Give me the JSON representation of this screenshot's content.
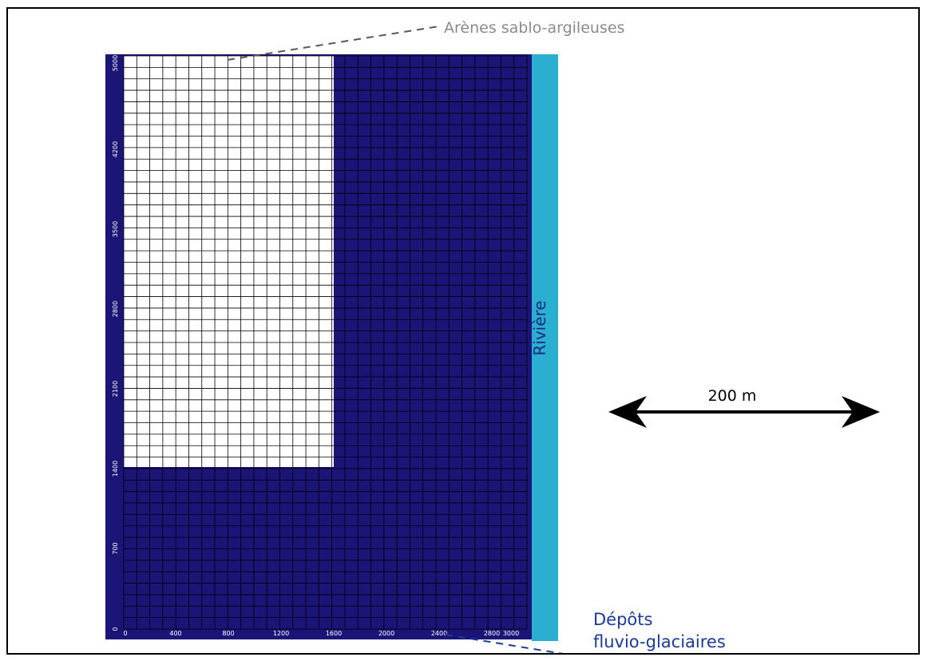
{
  "labels": {
    "arenes": "Arènes sablo-argileuses",
    "riviere": "Rivière",
    "scale": "200 m",
    "depots_line1": "Dépôts",
    "depots_line2": "fluvio-glaciaires"
  },
  "axes": {
    "x_ticks": [
      "0",
      "400",
      "800",
      "1200",
      "1600",
      "2000",
      "2400",
      "2800",
      "3000"
    ],
    "y_ticks": [
      "0",
      "700",
      "1400",
      "2100",
      "2800",
      "3500",
      "4200",
      "5000"
    ]
  },
  "colors": {
    "model_bg": "#1b1577",
    "grid_dark": "#000000",
    "grid_light": "#000000",
    "white_zone": "#ffffff",
    "river": "#2aafd0",
    "leader": "#555555",
    "arenes_text": "#8a8a8a",
    "depots_text": "#1a3a9a",
    "riviere_text": "#1a2a80",
    "arrow": "#000000"
  }
}
